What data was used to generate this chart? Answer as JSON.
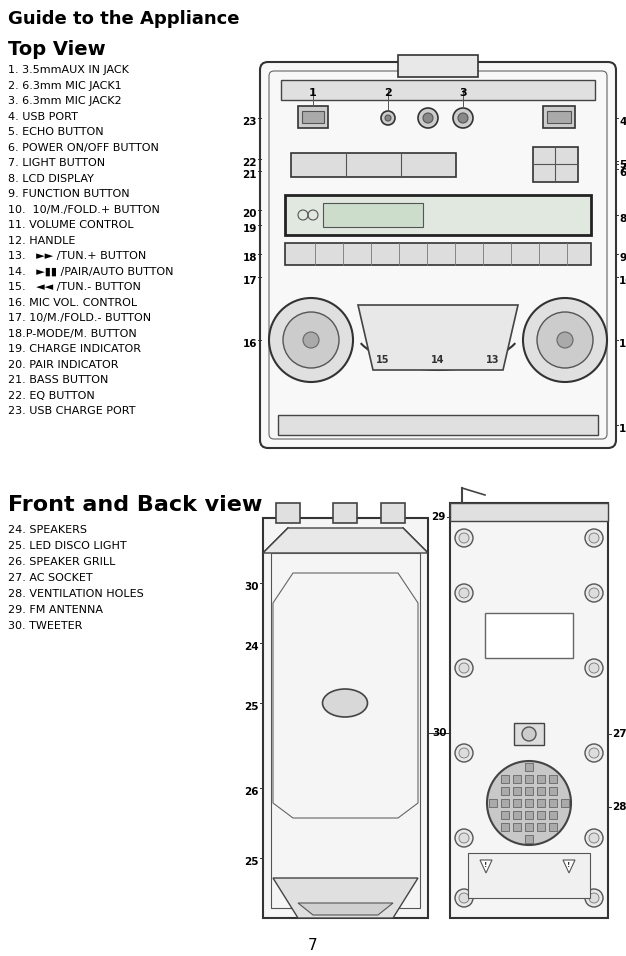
{
  "title": "Guide to the Appliance",
  "section1_title": "Top View",
  "section2_title": "Front and Back view",
  "top_view_items": [
    "1. 3.5mmAUX IN JACK",
    "2. 6.3mm MIC JACK1",
    "3. 6.3mm MIC JACK2",
    "4. USB PORT",
    "5. ECHO BUTTON",
    "6. POWER ON/OFF BUTTON",
    "7. LIGHT BUTTON",
    "8. LCD DISPLAY",
    "9. FUNCTION BUTTON",
    "10.  10/M./FOLD.+ BUTTON",
    "11. VOLUME CONTROL",
    "12. HANDLE",
    "13.   ►► /TUN.+ BUTTON",
    "14.   ►▮▮ /PAIR/AUTO BUTTON",
    "15.   ◄◄ /TUN.- BUTTON",
    "16. MIC VOL. CONTROL",
    "17. 10/M./FOLD.- BUTTON",
    "18.P-MODE/M. BUTTON",
    "19. CHARGE INDICATOR",
    "20. PAIR INDICATOR",
    "21. BASS BUTTON",
    "22. EQ BUTTON",
    "23. USB CHARGE PORT"
  ],
  "front_back_items": [
    "24. SPEAKERS",
    "25. LED DISCO LIGHT",
    "26. SPEAKER GRILL",
    "27. AC SOCKET",
    "28. VENTILATION HOLES",
    "29. FM ANTENNA",
    "30. TWEETER"
  ],
  "page_number": "7",
  "bg_color": "#ffffff",
  "text_color": "#000000",
  "title_fontsize": 13,
  "section1_fontsize": 14,
  "section2_fontsize": 16,
  "item_fontsize": 8.0,
  "label_fontsize": 7.5
}
